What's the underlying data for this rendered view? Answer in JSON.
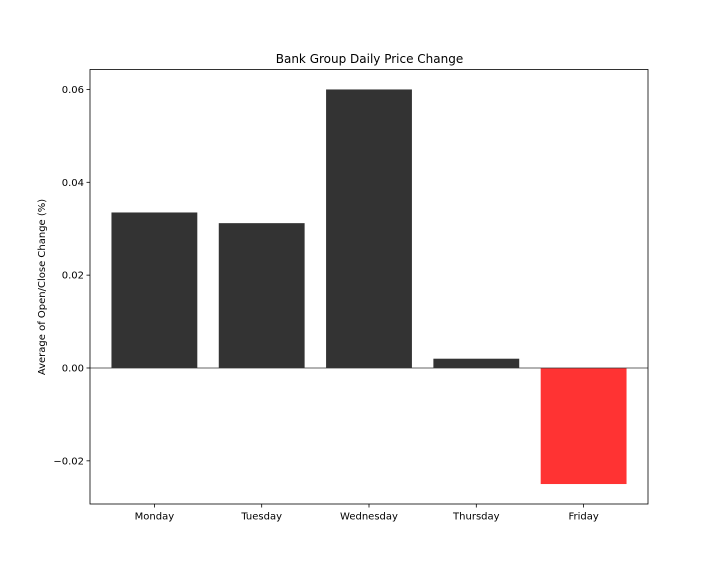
{
  "chart_data": {
    "type": "bar",
    "title": "Bank Group Daily Price Change",
    "xlabel": "",
    "ylabel": "Average of Open/Close Change (%)",
    "categories": [
      "Monday",
      "Tuesday",
      "Wednesday",
      "Thursday",
      "Friday"
    ],
    "values": [
      0.0335,
      0.0312,
      0.06,
      0.002,
      -0.025
    ],
    "yticks": [
      -0.02,
      0.0,
      0.02,
      0.04,
      0.06
    ],
    "ytick_labels": [
      "−0.02",
      "0.00",
      "0.02",
      "0.04",
      "0.06"
    ],
    "ylim": [
      -0.0293,
      0.0643
    ],
    "colors": {
      "positive": "#333333",
      "negative": "#ff3333",
      "zero_line": "#333333"
    },
    "grid": false,
    "legend": "none"
  }
}
